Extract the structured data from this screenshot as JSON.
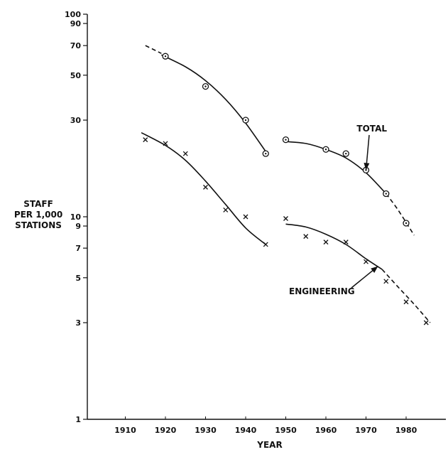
{
  "chart_data": {
    "type": "scatter",
    "y_scale": "log",
    "xlabel": "YEAR",
    "ylabel_lines": [
      "STAFF",
      "PER 1,000",
      "STATIONS"
    ],
    "xlim": [
      1900,
      1990
    ],
    "ylim": [
      1,
      100
    ],
    "x_ticks": [
      1910,
      1920,
      1930,
      1940,
      1950,
      1960,
      1970,
      1980
    ],
    "x_tick_labels": [
      "1910",
      "1920",
      "1930",
      "1940",
      "1950",
      "1960",
      "1970",
      "1980"
    ],
    "y_ticks": [
      1,
      3,
      5,
      7,
      9,
      10,
      30,
      50,
      70,
      90,
      100
    ],
    "y_tick_labels": [
      "1",
      "3",
      "5",
      "7",
      "9",
      "10",
      "30",
      "50",
      "70",
      "90",
      "100"
    ],
    "grid": false,
    "annotations": [
      {
        "text": "TOTAL",
        "series": "total",
        "arrow_to": [
          1970,
          17
        ]
      },
      {
        "text": "ENGINEERING",
        "series": "engineering",
        "arrow_to": [
          1973,
          5.7
        ]
      }
    ],
    "series": [
      {
        "id": "total",
        "marker": "circle-dot",
        "x": [
          1920,
          1930,
          1940,
          1945,
          1950,
          1960,
          1965,
          1970,
          1975,
          1980
        ],
        "y": [
          62,
          44,
          30,
          20.5,
          24,
          21.5,
          20.5,
          17,
          13,
          9.3
        ],
        "fit_segments": [
          {
            "style": "dashed",
            "x": [
              1915,
              1917,
              1919
            ],
            "y": [
              70,
              67,
              64
            ]
          },
          {
            "style": "solid",
            "x": [
              1919,
              1925,
              1930,
              1935,
              1940,
              1945
            ],
            "y": [
              63,
              55,
              47,
              38,
              29,
              21
            ]
          },
          {
            "style": "solid",
            "x": [
              1950,
              1955,
              1960,
              1965,
              1970,
              1975
            ],
            "y": [
              23.5,
              23,
              21.5,
              19.5,
              16.5,
              13
            ]
          },
          {
            "style": "dashed",
            "x": [
              1975,
              1978,
              1982
            ],
            "y": [
              13,
              10.8,
              8.1
            ]
          }
        ]
      },
      {
        "id": "engineering",
        "marker": "cross",
        "x": [
          1915,
          1920,
          1925,
          1930,
          1935,
          1940,
          1945,
          1950,
          1955,
          1960,
          1965,
          1970,
          1975,
          1980,
          1985
        ],
        "y": [
          24,
          23,
          20.5,
          14,
          10.8,
          10,
          7.3,
          9.8,
          8,
          7.5,
          7.5,
          6,
          4.8,
          3.8,
          3
        ],
        "fit_segments": [
          {
            "style": "solid",
            "x": [
              1914,
              1920,
              1925,
              1930,
              1935,
              1940,
              1945
            ],
            "y": [
              26,
              22.5,
              19,
              15,
              11.5,
              8.8,
              7.3
            ]
          },
          {
            "style": "solid",
            "x": [
              1950,
              1955,
              1960,
              1965,
              1970,
              1974
            ],
            "y": [
              9.2,
              8.9,
              8.2,
              7.3,
              6.2,
              5.5
            ]
          },
          {
            "style": "dashed",
            "x": [
              1974,
              1978,
              1982,
              1986
            ],
            "y": [
              5.5,
              4.5,
              3.7,
              3.0
            ]
          }
        ]
      }
    ]
  }
}
